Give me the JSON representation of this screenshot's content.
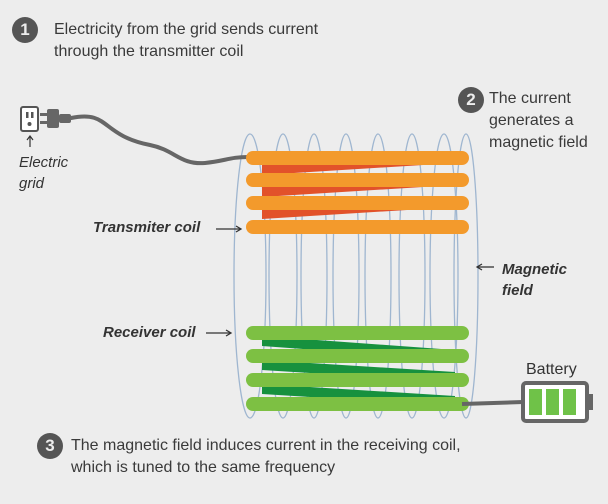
{
  "steps": [
    {
      "number": "1",
      "text_line1": "Electricity from the grid sends current",
      "text_line2": "through the transmitter coil"
    },
    {
      "number": "2",
      "text_line1": "The current",
      "text_line2": "generates a",
      "text_line3": "magnetic field"
    },
    {
      "number": "3",
      "text_line1": "The magnetic field induces current in the receiving coil,",
      "text_line2": "which is tuned to the same frequency"
    }
  ],
  "labels": {
    "electric_grid_line1": "Electric",
    "electric_grid_line2": "grid",
    "transmitter_coil": "Transmiter coil",
    "receiver_coil": "Receiver coil",
    "magnetic_field_line1": "Magnetic",
    "magnetic_field_line2": "field",
    "battery": "Battery"
  },
  "colors": {
    "background": "#ededed",
    "transmitter_coil": "#f39a2c",
    "transmitter_coil_back": "#e2522a",
    "receiver_coil": "#7dc043",
    "receiver_coil_back": "#17913e",
    "field_lines": "#9fb6d0",
    "battery_fill": "#6fc248",
    "badge": "#555555"
  },
  "icons": [
    "outlet-icon",
    "plug-icon",
    "battery-icon",
    "arrow-icon"
  ]
}
